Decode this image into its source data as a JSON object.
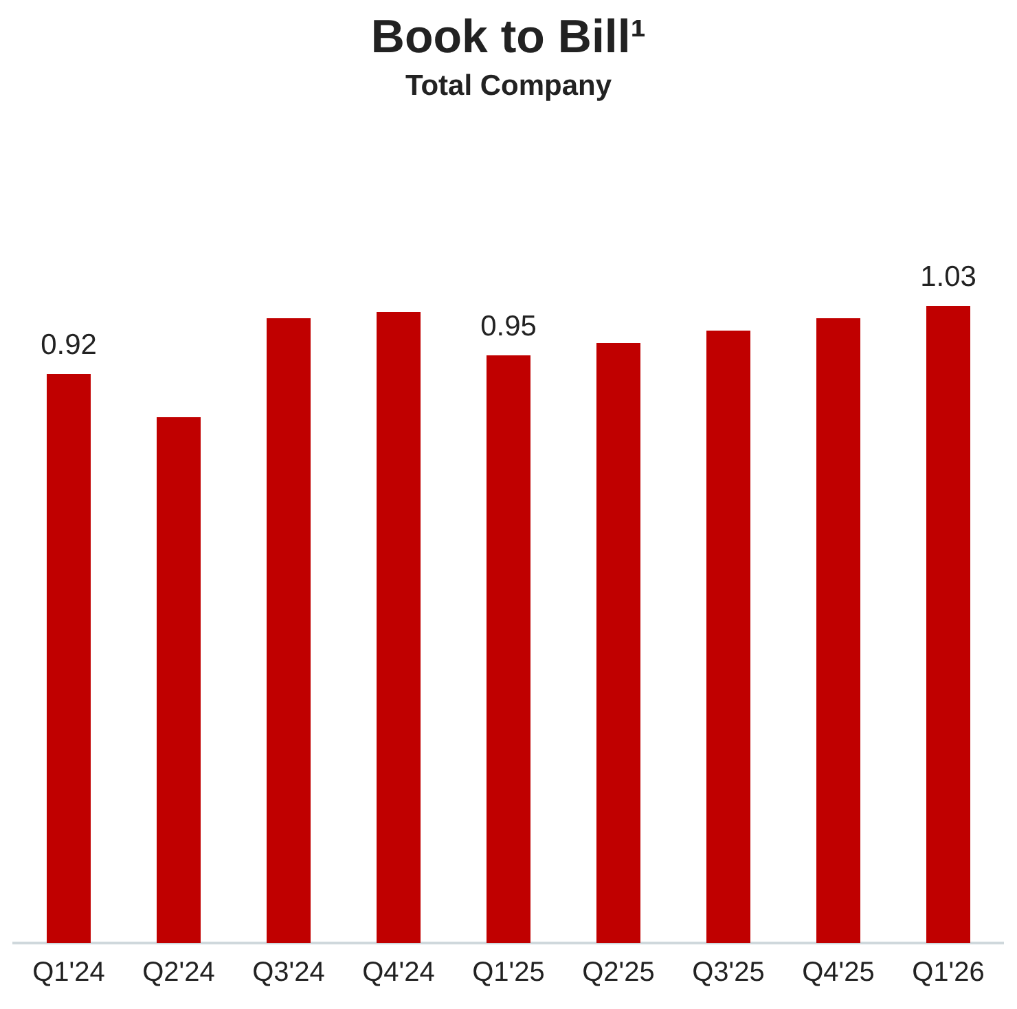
{
  "chart_data": {
    "type": "bar",
    "title": "Book to Bill¹",
    "subtitle": "Total Company",
    "categories": [
      "Q1'24",
      "Q2'24",
      "Q3'24",
      "Q4'24",
      "Q1'25",
      "Q2'25",
      "Q3'25",
      "Q4'25",
      "Q1'26"
    ],
    "values": [
      0.92,
      0.85,
      1.01,
      1.02,
      0.95,
      0.97,
      0.99,
      1.01,
      1.03
    ],
    "value_labels": [
      "0.92",
      null,
      null,
      null,
      "0.95",
      null,
      null,
      null,
      "1.03"
    ],
    "color": "#c00000",
    "tick_labels": "x",
    "grid": false,
    "legend": false
  }
}
